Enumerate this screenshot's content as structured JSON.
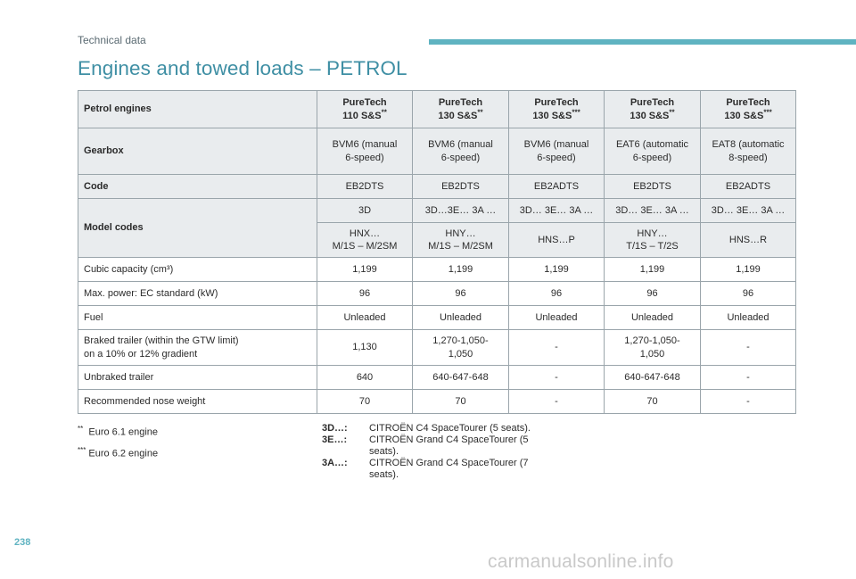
{
  "header": {
    "section": "Technical data",
    "title": "Engines and towed loads – PETROL",
    "accent_color": "#5fb3c1"
  },
  "table": {
    "engine_label": "Petrol engines",
    "engines": [
      {
        "name": "PureTech",
        "variant": "110 S&S",
        "sup": "**"
      },
      {
        "name": "PureTech",
        "variant": "130 S&S",
        "sup": "**"
      },
      {
        "name": "PureTech",
        "variant": "130 S&S",
        "sup": "***"
      },
      {
        "name": "PureTech",
        "variant": "130 S&S",
        "sup": "**"
      },
      {
        "name": "PureTech",
        "variant": "130 S&S",
        "sup": "***"
      }
    ],
    "gearbox_label": "Gearbox",
    "gearboxes": [
      {
        "l1": "BVM6 (manual",
        "l2": "6-speed)"
      },
      {
        "l1": "BVM6 (manual",
        "l2": "6-speed)"
      },
      {
        "l1": "BVM6 (manual",
        "l2": "6-speed)"
      },
      {
        "l1": "EAT6 (automatic",
        "l2": "6-speed)"
      },
      {
        "l1": "EAT8 (automatic",
        "l2": "8-speed)"
      }
    ],
    "code_label": "Code",
    "codes": [
      "EB2DTS",
      "EB2DTS",
      "EB2ADTS",
      "EB2DTS",
      "EB2ADTS"
    ],
    "model_codes_label": "Model codes",
    "model_codes_1": [
      "3D",
      "3D…3E… 3A …",
      "3D… 3E… 3A …",
      "3D… 3E… 3A …",
      "3D… 3E… 3A …"
    ],
    "model_codes_2": [
      {
        "l1": "HNX…",
        "l2": "M/1S – M/2SM"
      },
      {
        "l1": "HNY…",
        "l2": "M/1S – M/2SM"
      },
      {
        "l1": "HNS…P",
        "l2": ""
      },
      {
        "l1": "HNY…",
        "l2": "T/1S – T/2S"
      },
      {
        "l1": "HNS…R",
        "l2": ""
      }
    ],
    "cubic_label": "Cubic capacity (cm³)",
    "cubic": [
      "1,199",
      "1,199",
      "1,199",
      "1,199",
      "1,199"
    ],
    "power_label": "Max. power: EC standard (kW)",
    "power": [
      "96",
      "96",
      "96",
      "96",
      "96"
    ],
    "fuel_label": "Fuel",
    "fuel": [
      "Unleaded",
      "Unleaded",
      "Unleaded",
      "Unleaded",
      "Unleaded"
    ],
    "braked_label_1": "Braked trailer (within the GTW limit)",
    "braked_label_2": "on a 10% or 12% gradient",
    "braked": [
      {
        "l1": "1,130",
        "l2": ""
      },
      {
        "l1": "1,270-1,050-",
        "l2": "1,050"
      },
      {
        "l1": "-",
        "l2": ""
      },
      {
        "l1": "1,270-1,050-",
        "l2": "1,050"
      },
      {
        "l1": "-",
        "l2": ""
      }
    ],
    "unbraked_label": "Unbraked trailer",
    "unbraked": [
      "640",
      "640-647-648",
      "-",
      "640-647-648",
      "-"
    ],
    "nose_label": "Recommended nose weight",
    "nose": [
      "70",
      "70",
      "-",
      "70",
      "-"
    ]
  },
  "footnotes": [
    {
      "mark": "**",
      "text": "Euro 6.1 engine"
    },
    {
      "mark": "***",
      "text": "Euro 6.2 engine"
    }
  ],
  "legend": [
    {
      "code": "3D…:",
      "desc": "CITROËN C4 SpaceTourer (5 seats)."
    },
    {
      "code": "3E…:",
      "desc": "CITROËN Grand C4 SpaceTourer (5 seats)."
    },
    {
      "code": "3A…:",
      "desc": "CITROËN Grand C4 SpaceTourer (7 seats)."
    }
  ],
  "page_number": "238",
  "watermark": "carmanualsonline.info"
}
